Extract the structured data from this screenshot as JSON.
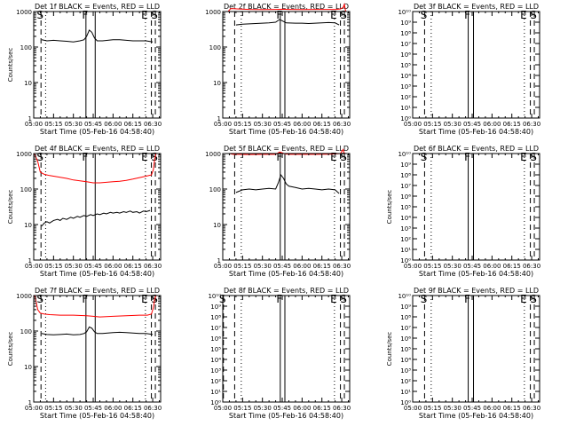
{
  "figure": {
    "xlabel": "Start Time (05-Feb-16 04:58:40)",
    "ylabel": "Counts/sec",
    "x_ticks": [
      "05:00",
      "05:15",
      "05:30",
      "05:45",
      "06:00",
      "06:15",
      "06:30"
    ],
    "colors": {
      "events": "#000000",
      "lld": "#ff0000",
      "axes": "#000000"
    }
  },
  "chart_data": [
    {
      "type": "line",
      "title": "Det 1f BLACK = Events, RED = LLD",
      "ylabel": "Counts/sec",
      "xlabel": "Start Time (05-Feb-16 04:58:40)",
      "x_unit": "minutes after 05:00",
      "xlim": [
        0,
        96
      ],
      "y_scale": "log",
      "ylim": [
        1,
        1000
      ],
      "y_ticks": [
        "1",
        "10",
        "100",
        "1000"
      ],
      "y_tick_values": [
        1,
        10,
        100,
        1000
      ],
      "events": {
        "x": [
          6,
          10,
          15,
          20,
          25,
          30,
          35,
          38,
          40,
          42,
          44,
          46,
          48,
          52,
          56,
          60,
          65,
          70,
          75,
          80,
          85,
          90
        ],
        "y": [
          160,
          150,
          155,
          150,
          145,
          140,
          150,
          160,
          200,
          300,
          260,
          180,
          150,
          150,
          155,
          160,
          160,
          155,
          150,
          150,
          150,
          140
        ]
      },
      "lld": {
        "x": [],
        "y": []
      },
      "markers": [
        {
          "x": 5.5,
          "label": "S",
          "style": "dashed"
        },
        {
          "x": 9.0,
          "label": "",
          "style": "dotted"
        },
        {
          "x": 39.5,
          "label": "F",
          "style": "solid"
        },
        {
          "x": 46.5,
          "label": "",
          "style": "solid"
        },
        {
          "x": 84.5,
          "label": "E",
          "style": "dotted"
        },
        {
          "x": 89.0,
          "label": "",
          "style": "dashed"
        },
        {
          "x": 92.0,
          "label": "S",
          "style": "dashed"
        }
      ]
    },
    {
      "type": "line",
      "title": "Det 2f BLACK = Events, RED = LLD",
      "ylabel": "",
      "xlabel": "Start Time (05-Feb-16 04:58:40)",
      "x_unit": "minutes after 05:00",
      "xlim": [
        0,
        96
      ],
      "y_scale": "log",
      "ylim": [
        1,
        1000
      ],
      "y_ticks": [
        "1",
        "10",
        "100",
        "1000"
      ],
      "y_tick_values": [
        1,
        10,
        100,
        1000
      ],
      "events": {
        "x": [
          10,
          15,
          20,
          25,
          30,
          35,
          40,
          43,
          45,
          48,
          55,
          60,
          65,
          70,
          75,
          80,
          85,
          88
        ],
        "y": [
          420,
          440,
          450,
          460,
          470,
          480,
          500,
          600,
          550,
          480,
          470,
          470,
          460,
          470,
          480,
          490,
          480,
          420
        ]
      },
      "lld": {
        "x": [
          0,
          2,
          4,
          6,
          8,
          12,
          20,
          30,
          40,
          45,
          50,
          60,
          70,
          80,
          86,
          89,
          91,
          92,
          93
        ],
        "y": [
          1000,
          1000,
          1000,
          1200,
          1200,
          1180,
          1150,
          1140,
          1150,
          1160,
          1150,
          1140,
          1150,
          1150,
          1150,
          1180,
          1300,
          1600,
          1000
        ]
      },
      "markers": [
        {
          "x": 9.0,
          "label": "",
          "style": "dashed"
        },
        {
          "x": 14.0,
          "label": "",
          "style": "dotted"
        },
        {
          "x": 43.5,
          "label": "F",
          "style": "solid"
        },
        {
          "x": 47.0,
          "label": "",
          "style": "solid"
        },
        {
          "x": 84.5,
          "label": "E",
          "style": "dotted"
        },
        {
          "x": 89.0,
          "label": "",
          "style": "dashed"
        },
        {
          "x": 92.0,
          "label": "S",
          "style": "dashed"
        }
      ]
    },
    {
      "type": "line",
      "title": "Det 3f BLACK = Events, RED = LLD",
      "ylabel": "",
      "xlabel": "Start Time (05-Feb-16 04:58:40)",
      "x_unit": "minutes after 05:00",
      "xlim": [
        0,
        96
      ],
      "y_scale": "log",
      "ylim": [
        1,
        10000000000
      ],
      "y_ticks": [
        "10⁰",
        "10¹",
        "10²",
        "10³",
        "10⁴",
        "10⁵",
        "10⁶",
        "10⁷",
        "10⁸",
        "10⁹",
        "10¹⁰"
      ],
      "y_tick_values": [
        1,
        10,
        100,
        1000,
        10000,
        100000,
        1000000,
        10000000,
        100000000,
        1000000000,
        10000000000
      ],
      "events": {
        "x": [],
        "y": []
      },
      "lld": {
        "x": [],
        "y": []
      },
      "markers": [
        {
          "x": 9.0,
          "label": "S",
          "style": "dashed"
        },
        {
          "x": 14.0,
          "label": "",
          "style": "dotted"
        },
        {
          "x": 42.0,
          "label": "F",
          "style": "solid"
        },
        {
          "x": 46.0,
          "label": "",
          "style": "solid"
        },
        {
          "x": 84.5,
          "label": "E",
          "style": "dotted"
        },
        {
          "x": 89.0,
          "label": "",
          "style": "dashed"
        },
        {
          "x": 92.0,
          "label": "S",
          "style": "dashed"
        }
      ]
    },
    {
      "type": "line",
      "title": "Det 4f BLACK = Events, RED = LLD",
      "ylabel": "Counts/sec",
      "xlabel": "Start Time (05-Feb-16 04:58:40)",
      "x_unit": "minutes after 05:00",
      "xlim": [
        0,
        96
      ],
      "y_scale": "log",
      "ylim": [
        1,
        1000
      ],
      "y_ticks": [
        "1",
        "10",
        "100",
        "1000"
      ],
      "y_tick_values": [
        1,
        10,
        100,
        1000
      ],
      "events": {
        "x": [
          6,
          8,
          10,
          12,
          15,
          18,
          20,
          22,
          25,
          28,
          30,
          33,
          35,
          38,
          40,
          43,
          45,
          48,
          50,
          53,
          55,
          58,
          60,
          63,
          65,
          68,
          70,
          73,
          75,
          78,
          80,
          83,
          85,
          88
        ],
        "y": [
          9,
          11,
          12,
          11,
          13,
          14,
          13,
          15,
          14,
          16,
          15,
          17,
          16,
          18,
          17,
          19,
          18,
          20,
          19,
          21,
          20,
          22,
          21,
          22,
          21,
          23,
          22,
          24,
          22,
          23,
          21,
          24,
          23,
          25
        ]
      },
      "lld": {
        "x": [
          0,
          1,
          3,
          5,
          8,
          12,
          18,
          25,
          30,
          35,
          40,
          45,
          50,
          55,
          60,
          65,
          70,
          75,
          80,
          85,
          89,
          90.5,
          91.5,
          92.5,
          93.5
        ],
        "y": [
          1000,
          900,
          600,
          300,
          260,
          240,
          220,
          200,
          180,
          170,
          160,
          150,
          150,
          155,
          160,
          165,
          175,
          190,
          210,
          230,
          250,
          350,
          700,
          1000,
          1000
        ]
      },
      "markers": [
        {
          "x": 5.5,
          "label": "S",
          "style": "dashed"
        },
        {
          "x": 9.0,
          "label": "",
          "style": "dotted"
        },
        {
          "x": 39.5,
          "label": "F",
          "style": "solid"
        },
        {
          "x": 46.5,
          "label": "",
          "style": "solid"
        },
        {
          "x": 84.5,
          "label": "E",
          "style": "dotted"
        },
        {
          "x": 89.0,
          "label": "",
          "style": "dashed"
        },
        {
          "x": 92.0,
          "label": "S",
          "style": "dashed"
        }
      ]
    },
    {
      "type": "line",
      "title": "Det 5f BLACK = Events, RED = LLD",
      "ylabel": "",
      "xlabel": "Start Time (05-Feb-16 04:58:40)",
      "x_unit": "minutes after 05:00",
      "xlim": [
        0,
        96
      ],
      "y_scale": "log",
      "ylim": [
        1,
        1000
      ],
      "y_ticks": [
        "1",
        "10",
        "100",
        "1000"
      ],
      "y_tick_values": [
        1,
        10,
        100,
        1000
      ],
      "events": {
        "x": [
          10,
          15,
          20,
          25,
          30,
          35,
          40,
          42,
          44,
          46,
          48,
          50,
          55,
          60,
          65,
          70,
          75,
          80,
          85,
          88
        ],
        "y": [
          80,
          95,
          100,
          95,
          100,
          105,
          100,
          150,
          250,
          200,
          140,
          120,
          110,
          100,
          105,
          100,
          95,
          100,
          95,
          75
        ]
      },
      "lld": {
        "x": [
          0,
          2,
          5,
          8,
          12,
          20,
          30,
          40,
          43,
          45,
          47,
          50,
          60,
          70,
          80,
          86,
          89,
          91,
          92,
          93
        ],
        "y": [
          1000,
          1000,
          1000,
          950,
          950,
          940,
          950,
          950,
          1100,
          1050,
          980,
          950,
          950,
          950,
          960,
          980,
          1000,
          1300,
          1000,
          1000
        ]
      },
      "markers": [
        {
          "x": 9.0,
          "label": "",
          "style": "dashed"
        },
        {
          "x": 14.0,
          "label": "",
          "style": "dotted"
        },
        {
          "x": 43.5,
          "label": "F",
          "style": "solid"
        },
        {
          "x": 47.0,
          "label": "",
          "style": "solid"
        },
        {
          "x": 84.5,
          "label": "E",
          "style": "dotted"
        },
        {
          "x": 89.0,
          "label": "",
          "style": "dashed"
        },
        {
          "x": 92.0,
          "label": "S",
          "style": "dashed"
        }
      ]
    },
    {
      "type": "line",
      "title": "Det 6f BLACK = Events, RED = LLD",
      "ylabel": "Counts/sec",
      "xlabel": "Start Time (05-Feb-16 04:58:40)",
      "x_unit": "minutes after 05:00",
      "xlim": [
        0,
        96
      ],
      "y_scale": "log",
      "ylim": [
        1,
        10000000000
      ],
      "y_ticks": [
        "10⁰",
        "10¹",
        "10²",
        "10³",
        "10⁴",
        "10⁵",
        "10⁶",
        "10⁷",
        "10⁸",
        "10⁹",
        "10¹⁰"
      ],
      "y_tick_values": [
        1,
        10,
        100,
        1000,
        10000,
        100000,
        1000000,
        10000000,
        100000000,
        1000000000,
        10000000000
      ],
      "events": {
        "x": [],
        "y": []
      },
      "lld": {
        "x": [],
        "y": []
      },
      "markers": [
        {
          "x": 9.0,
          "label": "S",
          "style": "dashed"
        },
        {
          "x": 14.0,
          "label": "",
          "style": "dotted"
        },
        {
          "x": 42.0,
          "label": "F",
          "style": "solid"
        },
        {
          "x": 46.0,
          "label": "",
          "style": "solid"
        },
        {
          "x": 84.5,
          "label": "E",
          "style": "dotted"
        },
        {
          "x": 89.0,
          "label": "",
          "style": "dashed"
        },
        {
          "x": 92.0,
          "label": "S",
          "style": "dashed"
        }
      ]
    },
    {
      "type": "line",
      "title": "Det 7f BLACK = Events, RED = LLD",
      "ylabel": "Counts/sec",
      "xlabel": "Start Time (05-Feb-16 04:58:40)",
      "x_unit": "minutes after 05:00",
      "xlim": [
        0,
        96
      ],
      "y_scale": "log",
      "ylim": [
        1,
        1000
      ],
      "y_ticks": [
        "1",
        "10",
        "100",
        "1000"
      ],
      "y_tick_values": [
        1,
        10,
        100,
        1000
      ],
      "events": {
        "x": [
          6,
          10,
          15,
          20,
          25,
          30,
          35,
          38,
          40,
          42,
          44,
          46,
          48,
          52,
          56,
          60,
          65,
          70,
          75,
          80,
          85,
          90
        ],
        "y": [
          85,
          80,
          78,
          80,
          82,
          78,
          80,
          85,
          95,
          130,
          120,
          95,
          85,
          85,
          88,
          90,
          92,
          90,
          88,
          85,
          85,
          80
        ]
      },
      "lld": {
        "x": [
          0,
          1,
          3,
          5,
          8,
          12,
          20,
          30,
          40,
          45,
          50,
          60,
          70,
          80,
          86,
          89,
          90.5,
          91.5,
          92.5,
          93.5
        ],
        "y": [
          1000,
          950,
          400,
          320,
          300,
          290,
          280,
          280,
          270,
          260,
          250,
          260,
          270,
          280,
          280,
          300,
          450,
          800,
          1000,
          1000
        ]
      },
      "markers": [
        {
          "x": 5.5,
          "label": "S",
          "style": "dashed"
        },
        {
          "x": 9.0,
          "label": "",
          "style": "dotted"
        },
        {
          "x": 39.5,
          "label": "F",
          "style": "solid"
        },
        {
          "x": 46.5,
          "label": "",
          "style": "solid"
        },
        {
          "x": 84.5,
          "label": "E",
          "style": "dotted"
        },
        {
          "x": 89.0,
          "label": "",
          "style": "dashed"
        },
        {
          "x": 92.0,
          "label": "S",
          "style": "dashed"
        }
      ]
    },
    {
      "type": "line",
      "title": "Det 8f BLACK = Events, RED = LLD",
      "ylabel": "",
      "xlabel": "Start Time (05-Feb-16 04:58:40)",
      "x_unit": "minutes after 05:00",
      "xlim": [
        0,
        96
      ],
      "y_scale": "log",
      "ylim": [
        1,
        10000000000
      ],
      "y_ticks": [
        "10⁰",
        "10¹",
        "10²",
        "10³",
        "10⁴",
        "10⁵",
        "10⁶",
        "10⁷",
        "10⁸",
        "10⁹",
        "10¹⁰"
      ],
      "y_tick_values": [
        1,
        10,
        100,
        1000,
        10000,
        100000,
        1000000,
        10000000,
        100000000,
        1000000000,
        10000000000
      ],
      "events": {
        "x": [],
        "y": []
      },
      "lld": {
        "x": [],
        "y": []
      },
      "markers": [
        {
          "x": 0.5,
          "label": "S",
          "style": "dashed"
        },
        {
          "x": 9.0,
          "label": "",
          "style": "dashed"
        },
        {
          "x": 14.0,
          "label": "",
          "style": "dotted"
        },
        {
          "x": 43.5,
          "label": "F",
          "style": "solid"
        },
        {
          "x": 47.0,
          "label": "",
          "style": "solid"
        },
        {
          "x": 84.5,
          "label": "E",
          "style": "dotted"
        },
        {
          "x": 89.0,
          "label": "",
          "style": "dashed"
        },
        {
          "x": 92.0,
          "label": "S",
          "style": "dashed"
        }
      ]
    },
    {
      "type": "line",
      "title": "Det 9f BLACK = Events, RED = LLD",
      "ylabel": "Counts/sec",
      "xlabel": "Start Time (05-Feb-16 04:58:40)",
      "x_unit": "minutes after 05:00",
      "xlim": [
        0,
        96
      ],
      "y_scale": "log",
      "ylim": [
        1,
        10000000000
      ],
      "y_ticks": [
        "10⁰",
        "10¹",
        "10²",
        "10³",
        "10⁴",
        "10⁵",
        "10⁶",
        "10⁷",
        "10⁸",
        "10⁹",
        "10¹⁰"
      ],
      "y_tick_values": [
        1,
        10,
        100,
        1000,
        10000,
        100000,
        1000000,
        10000000,
        100000000,
        1000000000,
        10000000000
      ],
      "events": {
        "x": [],
        "y": []
      },
      "lld": {
        "x": [],
        "y": []
      },
      "markers": [
        {
          "x": 9.0,
          "label": "S",
          "style": "dashed"
        },
        {
          "x": 14.0,
          "label": "",
          "style": "dotted"
        },
        {
          "x": 42.0,
          "label": "F",
          "style": "solid"
        },
        {
          "x": 46.0,
          "label": "",
          "style": "solid"
        },
        {
          "x": 84.5,
          "label": "E",
          "style": "dotted"
        },
        {
          "x": 89.0,
          "label": "",
          "style": "dashed"
        },
        {
          "x": 92.0,
          "label": "S",
          "style": "dashed"
        }
      ]
    }
  ]
}
